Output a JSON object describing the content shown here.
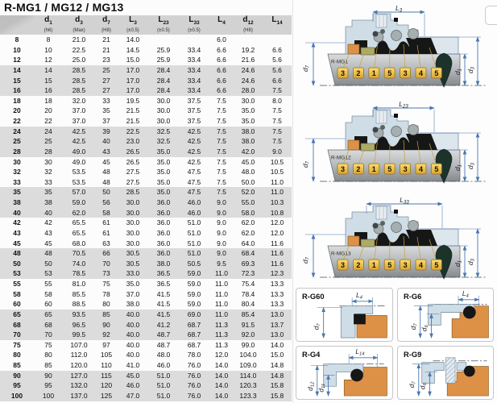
{
  "title": "R-MG1 / MG12 / MG13",
  "table": {
    "headers": [
      {
        "main": "",
        "sub": "",
        "note": ""
      },
      {
        "main": "d",
        "sub": "1",
        "note": "(h6)"
      },
      {
        "main": "d",
        "sub": "3",
        "note": "(Max)"
      },
      {
        "main": "d",
        "sub": "7",
        "note": "(H8)"
      },
      {
        "main": "L",
        "sub": "3",
        "note": "(±0.5)"
      },
      {
        "main": "L",
        "sub": "23",
        "note": "(±0.5)"
      },
      {
        "main": "L",
        "sub": "33",
        "note": "(±0.5)"
      },
      {
        "main": "L",
        "sub": "4",
        "note": ""
      },
      {
        "main": "d",
        "sub": "12",
        "note": "(H8)"
      },
      {
        "main": "L",
        "sub": "14",
        "note": ""
      }
    ],
    "rows": [
      [
        "8",
        "8",
        "21.0",
        "21",
        "14.0",
        "",
        "",
        "6.0",
        "",
        ""
      ],
      [
        "10",
        "10",
        "22.5",
        "21",
        "14.5",
        "25.9",
        "33.4",
        "6.6",
        "19.2",
        "6.6"
      ],
      [
        "12",
        "12",
        "25.0",
        "23",
        "15.0",
        "25.9",
        "33.4",
        "6.6",
        "21.6",
        "5.6"
      ],
      [
        "14",
        "14",
        "28.5",
        "25",
        "17.0",
        "28.4",
        "33.4",
        "6.6",
        "24.6",
        "5.6"
      ],
      [
        "15",
        "15",
        "28.5",
        "27",
        "17.0",
        "28.4",
        "33.4",
        "6.6",
        "24.6",
        "6.6"
      ],
      [
        "16",
        "16",
        "28.5",
        "27",
        "17.0",
        "28.4",
        "33.4",
        "6.6",
        "28.0",
        "7.5"
      ],
      [
        "18",
        "18",
        "32.0",
        "33",
        "19.5",
        "30.0",
        "37.5",
        "7.5",
        "30.0",
        "8.0"
      ],
      [
        "20",
        "20",
        "37.0",
        "35",
        "21.5",
        "30.0",
        "37.5",
        "7.5",
        "35.0",
        "7.5"
      ],
      [
        "22",
        "22",
        "37.0",
        "37",
        "21.5",
        "30.0",
        "37.5",
        "7.5",
        "35.0",
        "7.5"
      ],
      [
        "24",
        "24",
        "42.5",
        "39",
        "22.5",
        "32.5",
        "42.5",
        "7.5",
        "38.0",
        "7.5"
      ],
      [
        "25",
        "25",
        "42.5",
        "40",
        "23.0",
        "32.5",
        "42.5",
        "7.5",
        "38.0",
        "7.5"
      ],
      [
        "28",
        "28",
        "49.0",
        "43",
        "26.5",
        "35.0",
        "42.5",
        "7.5",
        "42.0",
        "9.0"
      ],
      [
        "30",
        "30",
        "49.0",
        "45",
        "26.5",
        "35.0",
        "42.5",
        "7.5",
        "45.0",
        "10.5"
      ],
      [
        "32",
        "32",
        "53.5",
        "48",
        "27.5",
        "35.0",
        "47.5",
        "7.5",
        "48.0",
        "10.5"
      ],
      [
        "33",
        "33",
        "53.5",
        "48",
        "27.5",
        "35.0",
        "47.5",
        "7.5",
        "50.0",
        "11.0"
      ],
      [
        "35",
        "35",
        "57.0",
        "50",
        "28.5",
        "35.0",
        "47.5",
        "7.5",
        "52.0",
        "11.0"
      ],
      [
        "38",
        "38",
        "59.0",
        "56",
        "30.0",
        "36.0",
        "46.0",
        "9.0",
        "55.0",
        "10.3"
      ],
      [
        "40",
        "40",
        "62.0",
        "58",
        "30.0",
        "36.0",
        "46.0",
        "9.0",
        "58.0",
        "10.8"
      ],
      [
        "42",
        "42",
        "65.5",
        "61",
        "30.0",
        "36.0",
        "51.0",
        "9.0",
        "62.0",
        "12.0"
      ],
      [
        "43",
        "43",
        "65.5",
        "61",
        "30.0",
        "36.0",
        "51.0",
        "9.0",
        "62.0",
        "12.0"
      ],
      [
        "45",
        "45",
        "68.0",
        "63",
        "30.0",
        "36.0",
        "51.0",
        "9.0",
        "64.0",
        "11.6"
      ],
      [
        "48",
        "48",
        "70.5",
        "66",
        "30.5",
        "36.0",
        "51.0",
        "9.0",
        "68.4",
        "11.6"
      ],
      [
        "50",
        "50",
        "74.0",
        "70",
        "30.5",
        "38.0",
        "50.5",
        "9.5",
        "69.3",
        "11.6"
      ],
      [
        "53",
        "53",
        "78.5",
        "73",
        "33.0",
        "36.5",
        "59.0",
        "11.0",
        "72.3",
        "12.3"
      ],
      [
        "55",
        "55",
        "81.0",
        "75",
        "35.0",
        "36.5",
        "59.0",
        "11.0",
        "75.4",
        "13.3"
      ],
      [
        "58",
        "58",
        "85.5",
        "78",
        "37.0",
        "41.5",
        "59.0",
        "11.0",
        "78.4",
        "13.3"
      ],
      [
        "60",
        "60",
        "88.5",
        "80",
        "38.0",
        "41.5",
        "59.0",
        "11.0",
        "80.4",
        "13.3"
      ],
      [
        "65",
        "65",
        "93.5",
        "85",
        "40.0",
        "41.5",
        "69.0",
        "11.0",
        "85.4",
        "13.0"
      ],
      [
        "68",
        "68",
        "96.5",
        "90",
        "40.0",
        "41.2",
        "68.7",
        "11.3",
        "91.5",
        "13.7"
      ],
      [
        "70",
        "70",
        "99.5",
        "92",
        "40.0",
        "48.7",
        "68.7",
        "11.3",
        "92.0",
        "13.0"
      ],
      [
        "75",
        "75",
        "107.0",
        "97",
        "40.0",
        "48.7",
        "68.7",
        "11.3",
        "99.0",
        "14.0"
      ],
      [
        "80",
        "80",
        "112.0",
        "105",
        "40.0",
        "48.0",
        "78.0",
        "12.0",
        "104.0",
        "15.0"
      ],
      [
        "85",
        "85",
        "120.0",
        "110",
        "41.0",
        "46.0",
        "76.0",
        "14.0",
        "109.0",
        "14.8"
      ],
      [
        "90",
        "90",
        "127.0",
        "115",
        "45.0",
        "51.0",
        "76.0",
        "14.0",
        "114.0",
        "14.8"
      ],
      [
        "95",
        "95",
        "132.0",
        "120",
        "46.0",
        "51.0",
        "76.0",
        "14.0",
        "120.3",
        "15.8"
      ],
      [
        "100",
        "100",
        "137.0",
        "125",
        "47.0",
        "51.0",
        "76.0",
        "14.0",
        "123.3",
        "15.8"
      ]
    ]
  },
  "diagrams": [
    {
      "label": "R-MG1",
      "top_dim": {
        "main": "L",
        "sub": "3"
      },
      "left_dim": {
        "main": "d",
        "sub": "7"
      },
      "right_dims": [
        {
          "main": "d",
          "sub": "1"
        },
        {
          "main": "d",
          "sub": "3"
        }
      ],
      "callouts": [
        "3",
        "2",
        "1",
        "5",
        "3",
        "4",
        "5"
      ]
    },
    {
      "label": "R-MG12",
      "top_dim": {
        "main": "L",
        "sub": "23"
      },
      "left_dim": {
        "main": "d",
        "sub": "7"
      },
      "right_dims": [
        {
          "main": "d",
          "sub": "1"
        },
        {
          "main": "d",
          "sub": "3"
        }
      ],
      "callouts": [
        "3",
        "2",
        "1",
        "5",
        "3",
        "4",
        "5"
      ]
    },
    {
      "label": "R-MG13",
      "top_dim": {
        "main": "L",
        "sub": "33"
      },
      "left_dim": {
        "main": "d",
        "sub": "7"
      },
      "right_dims": [
        {
          "main": "d",
          "sub": "1"
        },
        {
          "main": "d",
          "sub": "3"
        }
      ],
      "callouts": [
        "3",
        "2",
        "1",
        "5",
        "3",
        "4",
        "5"
      ]
    }
  ],
  "seat_panels": [
    {
      "label": "R-G60",
      "top_dim": {
        "main": "L",
        "sub": "4"
      },
      "left_dims": [
        {
          "main": "d",
          "sub": "7"
        }
      ]
    },
    {
      "label": "R-G6",
      "top_dim": {
        "main": "L",
        "sub": "4"
      },
      "left_dims": [
        {
          "main": "d",
          "sub": "7"
        },
        {
          "main": "d",
          "sub": "6"
        }
      ]
    },
    {
      "label": "R-G4",
      "top_dim": {
        "main": "L",
        "sub": "14"
      },
      "left_dims": [
        {
          "main": "d",
          "sub": "12"
        },
        {
          "main": "d",
          "sub": "11"
        }
      ]
    },
    {
      "label": "R-G9",
      "top_dim": null,
      "left_dims": [
        {
          "main": "d",
          "sub": "7"
        },
        {
          "main": "d",
          "sub": "6"
        }
      ]
    }
  ],
  "colors": {
    "dimension_blue": "#4a77b0",
    "callout_yellow": "#f2c94c",
    "orange_part": "#dc9147",
    "olive_part": "#abaa69",
    "housing_blue": "#cfdde6",
    "elastomer_black": "#161616",
    "header_bg": "#d2d2d2",
    "row_alt_bg": "#dcdcdc",
    "drop_dark": "#1c332b"
  }
}
